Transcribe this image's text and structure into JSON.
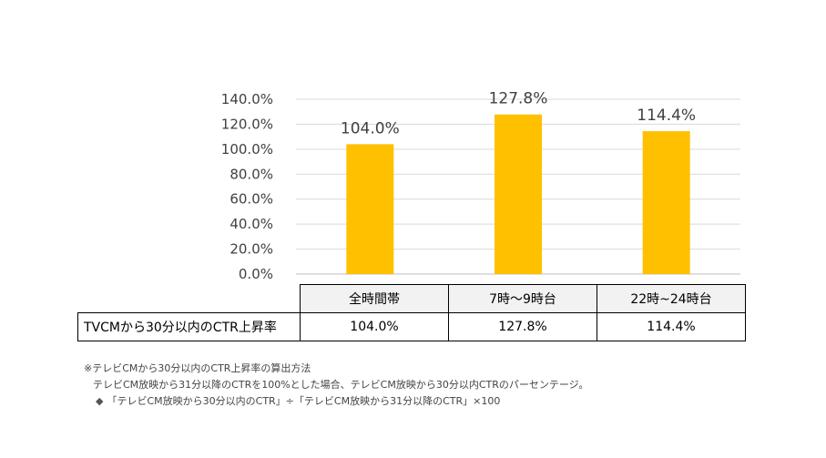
{
  "chart_data": {
    "type": "bar",
    "categories": [
      "全時間帯",
      "7時～9時台",
      "22時~24時台"
    ],
    "values": [
      104.0,
      127.8,
      114.4
    ],
    "value_labels": [
      "104.0%",
      "127.8%",
      "114.4%"
    ],
    "y_ticks": [
      "0.0%",
      "20.0%",
      "40.0%",
      "60.0%",
      "80.0%",
      "100.0%",
      "120.0%",
      "140.0%"
    ],
    "ylim": [
      0,
      140
    ],
    "bar_color": "#FFC000",
    "grid": true,
    "legend": "none"
  },
  "table": {
    "row_label": "TVCMから30分以内のCTR上昇率",
    "cells": [
      "104.0%",
      "127.8%",
      "114.4%"
    ]
  },
  "notes": {
    "line1": "※テレビCMから30分以内のCTR上昇率の算出方法",
    "line2": "テレビCM放映から31分以降のCTRを100%とした場合、テレビCM放映から30分以内CTRのパーセンテージ。",
    "bullet": "◆",
    "line3": "「テレビCM放映から30分以内のCTR」÷「テレビCM放映から31分以降のCTR」×100"
  }
}
